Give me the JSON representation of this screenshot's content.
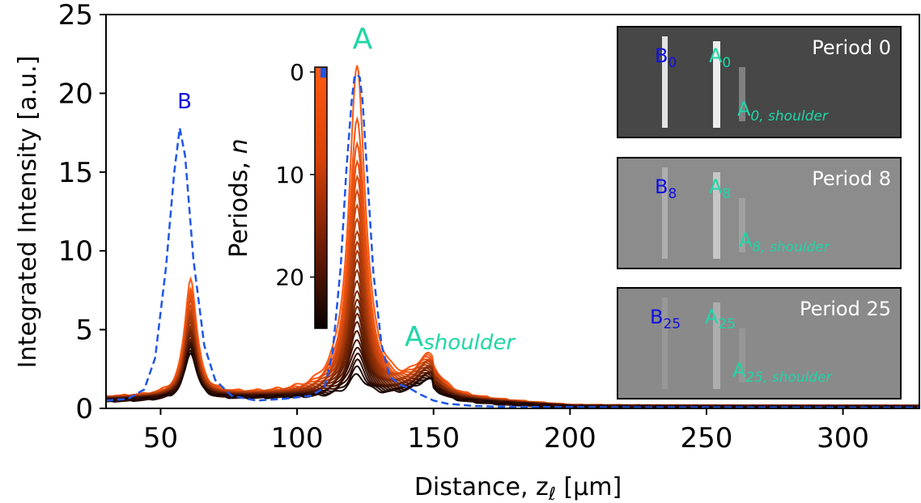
{
  "colors": {
    "series_start": "#ff5a12",
    "series_end": "#1a0400",
    "initial_dashed": "#1f56e8",
    "label_A": "#1fd6a6",
    "label_B": "#1010e0"
  },
  "chart_data": {
    "type": "line",
    "xlabel": "Distance, zℓ [μm]",
    "ylabel": "Integrated Intensity [a.u.]",
    "xlim": [
      30,
      328
    ],
    "ylim": [
      0,
      25
    ],
    "x_ticks": [
      50,
      100,
      150,
      200,
      250,
      300
    ],
    "y_ticks": [
      0,
      5,
      10,
      15,
      20,
      25
    ],
    "grid": false,
    "series": [
      {
        "name": "Period 0",
        "style": "dashed",
        "x": [
          30,
          38,
          44,
          48,
          52,
          55,
          57,
          59,
          62,
          66,
          70,
          76,
          85,
          95,
          105,
          110,
          113,
          116,
          118,
          120,
          121,
          122,
          123,
          124,
          126,
          128,
          131,
          134,
          138,
          142,
          145,
          150,
          155,
          165,
          180,
          200,
          230,
          260,
          290,
          328
        ],
        "y": [
          0.5,
          0.6,
          1.2,
          3.2,
          9.0,
          15.0,
          17.8,
          16.0,
          9.5,
          4.0,
          1.8,
          0.8,
          0.5,
          0.6,
          0.8,
          1.3,
          3.5,
          9.0,
          15.0,
          19.5,
          21.0,
          21.2,
          21.0,
          19.5,
          14.0,
          8.5,
          4.0,
          2.0,
          1.5,
          1.2,
          0.9,
          0.5,
          0.3,
          0.15,
          0.1,
          0.08,
          0.06,
          0.06,
          0.05,
          0.05
        ]
      }
    ],
    "period_curves": {
      "count": 26,
      "B_peak_x": 61,
      "A_peak_x": 122,
      "shoulder_x": 148,
      "B_amplitudes_first_to_last": [
        7.5,
        3.0
      ],
      "A_amplitudes_first_to_last": [
        20.7,
        1.3
      ],
      "shoulder_amplitudes_first_to_last": [
        2.0,
        0.9
      ],
      "baseline": 0.7
    },
    "annotations": {
      "A": "A",
      "B": "B",
      "A_shoulder_main": "A",
      "A_shoulder_sub": "shoulder"
    },
    "colorbar": {
      "label": "Periods, n",
      "ticks": [
        0,
        10,
        20
      ],
      "range": [
        0,
        25
      ]
    },
    "insets": [
      {
        "title": "Period 0",
        "B_label": "B",
        "B_sub": "0",
        "A_label": "A",
        "A_sub": "0",
        "shoulder_label": "A",
        "shoulder_sub": "0, shoulder",
        "background": "#474747",
        "stripe_B_opacity": 0.85,
        "stripe_A_opacity": 0.9
      },
      {
        "title": "Period 8",
        "B_label": "B",
        "B_sub": "8",
        "A_label": "A",
        "A_sub": "8",
        "shoulder_label": "A",
        "shoulder_sub": "8, shoulder",
        "background": "#8c8c8c",
        "stripe_B_opacity": 0.3,
        "stripe_A_opacity": 0.5
      },
      {
        "title": "Period 25",
        "B_label": "B",
        "B_sub": "25",
        "A_label": "A",
        "A_sub": "25",
        "shoulder_label": "A",
        "shoulder_sub": "25, shoulder",
        "background": "#8a8a8a",
        "stripe_B_opacity": 0.12,
        "stripe_A_opacity": 0.3
      }
    ]
  }
}
